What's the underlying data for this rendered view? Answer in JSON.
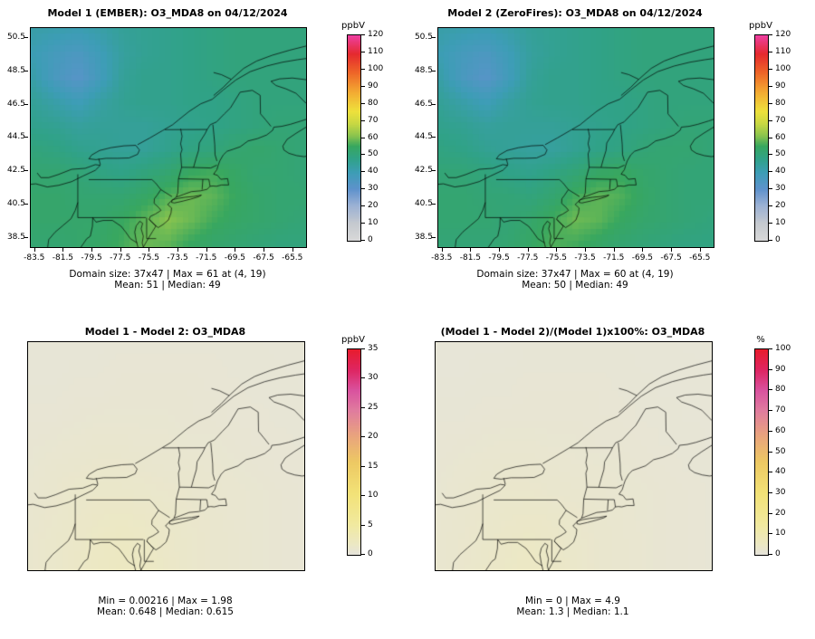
{
  "figure": {
    "background": "#ffffff"
  },
  "colormaps": {
    "conc": [
      [
        0,
        "#d8d8d8"
      ],
      [
        0.08,
        "#c6cacf"
      ],
      [
        0.17,
        "#9bb1d4"
      ],
      [
        0.25,
        "#5e92cc"
      ],
      [
        0.33,
        "#3d9db6"
      ],
      [
        0.4,
        "#30a287"
      ],
      [
        0.46,
        "#38a75f"
      ],
      [
        0.51,
        "#8ac44e"
      ],
      [
        0.57,
        "#c9d843"
      ],
      [
        0.63,
        "#eee13c"
      ],
      [
        0.72,
        "#f3ad33"
      ],
      [
        0.82,
        "#ee6528"
      ],
      [
        0.91,
        "#e52a2e"
      ],
      [
        1,
        "#ee3fa0"
      ]
    ],
    "diff": [
      [
        0,
        "#e6e4da"
      ],
      [
        0.05,
        "#ece8c4"
      ],
      [
        0.15,
        "#f1e99e"
      ],
      [
        0.3,
        "#f2e277"
      ],
      [
        0.45,
        "#edc963"
      ],
      [
        0.58,
        "#e9a47e"
      ],
      [
        0.7,
        "#e07d9e"
      ],
      [
        0.8,
        "#d9539f"
      ],
      [
        0.9,
        "#de2663"
      ],
      [
        1,
        "#e81c2e"
      ]
    ]
  },
  "panels": [
    {
      "title": "Model 1 (EMBER): O3_MDA8 on 04/12/2024",
      "colorbar_label": "ppbV",
      "caption1": "Domain size: 37x47 | Max = 61 at (4, 19)",
      "caption2": "Mean: 51  |  Median: 49"
    },
    {
      "title": "Model 2 (ZeroFires): O3_MDA8 on 04/12/2024",
      "colorbar_label": "ppbV",
      "caption1": "Domain size: 37x47 | Max = 60 at (4, 19)",
      "caption2": "Mean: 50  |  Median: 49"
    },
    {
      "title": "Model 1 - Model 2: O3_MDA8",
      "colorbar_label": "ppbV",
      "caption1": "Min = 0.00216 | Max = 1.98",
      "caption2": "Mean: 0.648  |  Median: 0.615"
    },
    {
      "title": "(Model 1 - Model 2)/(Model 1)x100%: O3_MDA8",
      "colorbar_label": "%",
      "caption1": "Min = 0 | Max = 4.9",
      "caption2": "Mean: 1.3  |  Median: 1.1"
    }
  ],
  "chart_data": [
    {
      "type": "heatmap",
      "title": "Model 1 (EMBER): O3_MDA8 on 04/12/2024",
      "units": "ppbV",
      "x_ticks": [
        -83.5,
        -81.5,
        -79.5,
        -77.5,
        -75.5,
        -73.5,
        -71.5,
        -69.5,
        -67.5,
        -65.5
      ],
      "y_ticks": [
        38.5,
        40.5,
        42.5,
        44.5,
        46.5,
        48.5,
        50.5
      ],
      "lon_range": [
        -83.8,
        -64.6
      ],
      "lat_range": [
        37.95,
        51.1
      ],
      "domain_size": "37x47",
      "stats": {
        "max": 61,
        "max_at": "(4, 19)",
        "mean": 51,
        "median": 49
      },
      "colorbar": {
        "min": 0,
        "max": 120,
        "ticks": [
          0,
          10,
          20,
          30,
          40,
          50,
          60,
          70,
          80,
          90,
          100,
          110,
          120
        ]
      },
      "colormap": "conc",
      "show_axes": true,
      "grid_estimated": true,
      "grid": {
        "cols": 13,
        "rows": 10,
        "values": [
          [
            42,
            41,
            40,
            42,
            45,
            46,
            47,
            48,
            49,
            50,
            50,
            50,
            50
          ],
          [
            40,
            37,
            35,
            39,
            44,
            46,
            47,
            48,
            49,
            50,
            50,
            50,
            50
          ],
          [
            42,
            36,
            32,
            38,
            45,
            47,
            47,
            48,
            49,
            50,
            50,
            50,
            50
          ],
          [
            45,
            42,
            39,
            43,
            46,
            47,
            47,
            48,
            48,
            49,
            50,
            50,
            50
          ],
          [
            47,
            46,
            44,
            45,
            45,
            45,
            46,
            47,
            48,
            49,
            50,
            51,
            51
          ],
          [
            50,
            49,
            47,
            46,
            45,
            45,
            47,
            49,
            50,
            52,
            53,
            52,
            51
          ],
          [
            52,
            52,
            51,
            49,
            48,
            50,
            52,
            55,
            56,
            54,
            52,
            52,
            51
          ],
          [
            53,
            53,
            52,
            52,
            52,
            54,
            57,
            59,
            58,
            55,
            53,
            52,
            52
          ],
          [
            53,
            53,
            53,
            53,
            55,
            58,
            61,
            59,
            56,
            54,
            53,
            52,
            51
          ],
          [
            52,
            52,
            53,
            54,
            56,
            59,
            58,
            55,
            53,
            52,
            51,
            50,
            50
          ]
        ]
      }
    },
    {
      "type": "heatmap",
      "title": "Model 2 (ZeroFires): O3_MDA8 on 04/12/2024",
      "units": "ppbV",
      "x_ticks": [
        -83.5,
        -81.5,
        -79.5,
        -77.5,
        -75.5,
        -73.5,
        -71.5,
        -69.5,
        -67.5,
        -65.5
      ],
      "y_ticks": [
        38.5,
        40.5,
        42.5,
        44.5,
        46.5,
        48.5,
        50.5
      ],
      "lon_range": [
        -83.8,
        -64.6
      ],
      "lat_range": [
        37.95,
        51.1
      ],
      "domain_size": "37x47",
      "stats": {
        "max": 60,
        "max_at": "(4, 19)",
        "mean": 50,
        "median": 49
      },
      "colorbar": {
        "min": 0,
        "max": 120,
        "ticks": [
          0,
          10,
          20,
          30,
          40,
          50,
          60,
          70,
          80,
          90,
          100,
          110,
          120
        ]
      },
      "colormap": "conc",
      "show_axes": true,
      "grid_estimated": true,
      "grid": {
        "cols": 13,
        "rows": 10,
        "values": [
          [
            42,
            41,
            40,
            42,
            45,
            46,
            47,
            48,
            49,
            50,
            50,
            50,
            50
          ],
          [
            40,
            37,
            35,
            39,
            44,
            46,
            47,
            48,
            49,
            50,
            50,
            50,
            50
          ],
          [
            42,
            36,
            32,
            38,
            45,
            47,
            47,
            48,
            49,
            50,
            50,
            50,
            50
          ],
          [
            45,
            42,
            39,
            43,
            46,
            47,
            47,
            48,
            48,
            49,
            50,
            50,
            50
          ],
          [
            47,
            46,
            44,
            45,
            45,
            45,
            46,
            47,
            48,
            49,
            50,
            51,
            51
          ],
          [
            49,
            48,
            46,
            45,
            44,
            44,
            46,
            48,
            49,
            51,
            52,
            52,
            51
          ],
          [
            51,
            51,
            50,
            48,
            47,
            49,
            51,
            54,
            55,
            53,
            52,
            51,
            51
          ],
          [
            52,
            52,
            51,
            51,
            50,
            52,
            56,
            58,
            57,
            54,
            52,
            51,
            51
          ],
          [
            52,
            52,
            52,
            51,
            53,
            56,
            59,
            58,
            55,
            53,
            52,
            51,
            50
          ],
          [
            51,
            51,
            51,
            52,
            54,
            57,
            56,
            54,
            52,
            51,
            50,
            49,
            49
          ]
        ]
      }
    },
    {
      "type": "heatmap",
      "title": "Model 1 - Model 2: O3_MDA8",
      "units": "ppbV",
      "lon_range": [
        -83.8,
        -64.6
      ],
      "lat_range": [
        37.95,
        51.1
      ],
      "stats": {
        "min": 0.00216,
        "max": 1.98,
        "mean": 0.648,
        "median": 0.615
      },
      "colorbar": {
        "min": 0,
        "max": 35,
        "ticks": [
          0,
          5,
          10,
          15,
          20,
          25,
          30,
          35
        ]
      },
      "colormap": "diff",
      "show_axes": false,
      "grid_estimated": true,
      "grid": {
        "cols": 13,
        "rows": 10,
        "values": [
          [
            0.3,
            0.3,
            0.3,
            0.3,
            0.4,
            0.4,
            0.4,
            0.4,
            0.4,
            0.4,
            0.4,
            0.3,
            0.3
          ],
          [
            0.3,
            0.3,
            0.4,
            0.4,
            0.5,
            0.5,
            0.5,
            0.5,
            0.5,
            0.4,
            0.4,
            0.4,
            0.3
          ],
          [
            0.4,
            0.4,
            0.5,
            0.5,
            0.6,
            0.6,
            0.6,
            0.6,
            0.5,
            0.5,
            0.4,
            0.4,
            0.4
          ],
          [
            0.5,
            0.5,
            0.6,
            0.7,
            0.7,
            0.7,
            0.7,
            0.6,
            0.6,
            0.5,
            0.5,
            0.4,
            0.4
          ],
          [
            0.6,
            0.7,
            0.8,
            0.9,
            0.9,
            0.8,
            0.8,
            0.7,
            0.7,
            0.6,
            0.5,
            0.5,
            0.4
          ],
          [
            0.7,
            0.9,
            1.0,
            1.1,
            1.1,
            1.0,
            0.9,
            0.9,
            0.8,
            0.7,
            0.6,
            0.5,
            0.5
          ],
          [
            0.8,
            1.0,
            1.2,
            1.3,
            1.3,
            1.2,
            1.1,
            1.0,
            0.9,
            0.8,
            0.7,
            0.6,
            0.5
          ],
          [
            0.9,
            1.1,
            1.3,
            1.5,
            1.6,
            1.5,
            1.3,
            1.1,
            1.0,
            0.8,
            0.7,
            0.6,
            0.5
          ],
          [
            1.0,
            1.2,
            1.4,
            1.7,
            1.9,
            1.7,
            1.4,
            1.2,
            1.0,
            0.9,
            0.7,
            0.6,
            0.5
          ],
          [
            1.0,
            1.2,
            1.5,
            1.8,
            2.0,
            1.8,
            1.5,
            1.2,
            1.0,
            0.9,
            0.7,
            0.6,
            0.5
          ]
        ]
      }
    },
    {
      "type": "heatmap",
      "title": "(Model 1 - Model 2)/(Model 1)x100%: O3_MDA8",
      "units": "%",
      "lon_range": [
        -83.8,
        -64.6
      ],
      "lat_range": [
        37.95,
        51.1
      ],
      "stats": {
        "min": 0,
        "max": 4.9,
        "mean": 1.3,
        "median": 1.1
      },
      "colorbar": {
        "min": 0,
        "max": 100,
        "ticks": [
          0,
          10,
          20,
          30,
          40,
          50,
          60,
          70,
          80,
          90,
          100
        ]
      },
      "colormap": "diff",
      "show_axes": false,
      "grid_estimated": true,
      "grid": {
        "cols": 13,
        "rows": 10,
        "values": [
          [
            0.7,
            0.7,
            0.7,
            0.7,
            1.0,
            1.0,
            1.0,
            1.0,
            1.0,
            1.0,
            1.0,
            0.7,
            0.7
          ],
          [
            0.7,
            0.7,
            1.0,
            1.0,
            1.2,
            1.2,
            1.2,
            1.2,
            1.2,
            1.0,
            1.0,
            1.0,
            0.7
          ],
          [
            1.0,
            1.0,
            1.2,
            1.2,
            1.5,
            1.5,
            1.5,
            1.5,
            1.2,
            1.2,
            1.0,
            1.0,
            1.0
          ],
          [
            1.2,
            1.2,
            1.5,
            1.7,
            1.7,
            1.7,
            1.7,
            1.5,
            1.5,
            1.2,
            1.2,
            1.0,
            1.0
          ],
          [
            1.5,
            1.7,
            2.0,
            2.2,
            2.2,
            2.0,
            2.0,
            1.7,
            1.7,
            1.5,
            1.2,
            1.2,
            1.0
          ],
          [
            1.7,
            2.2,
            2.5,
            2.7,
            2.7,
            2.5,
            2.2,
            2.2,
            2.0,
            1.7,
            1.5,
            1.2,
            1.2
          ],
          [
            2.0,
            2.5,
            2.9,
            3.2,
            3.2,
            2.9,
            2.7,
            2.5,
            2.2,
            2.0,
            1.7,
            1.5,
            1.2
          ],
          [
            2.2,
            2.7,
            3.2,
            3.7,
            3.9,
            3.7,
            3.2,
            2.7,
            2.5,
            2.0,
            1.7,
            1.5,
            1.2
          ],
          [
            2.5,
            2.9,
            3.4,
            4.2,
            4.7,
            4.2,
            3.4,
            2.9,
            2.5,
            2.2,
            1.7,
            1.5,
            1.2
          ],
          [
            2.5,
            2.9,
            3.7,
            4.4,
            4.9,
            4.4,
            3.7,
            2.9,
            2.5,
            2.2,
            1.7,
            1.5,
            1.2
          ]
        ]
      }
    }
  ]
}
